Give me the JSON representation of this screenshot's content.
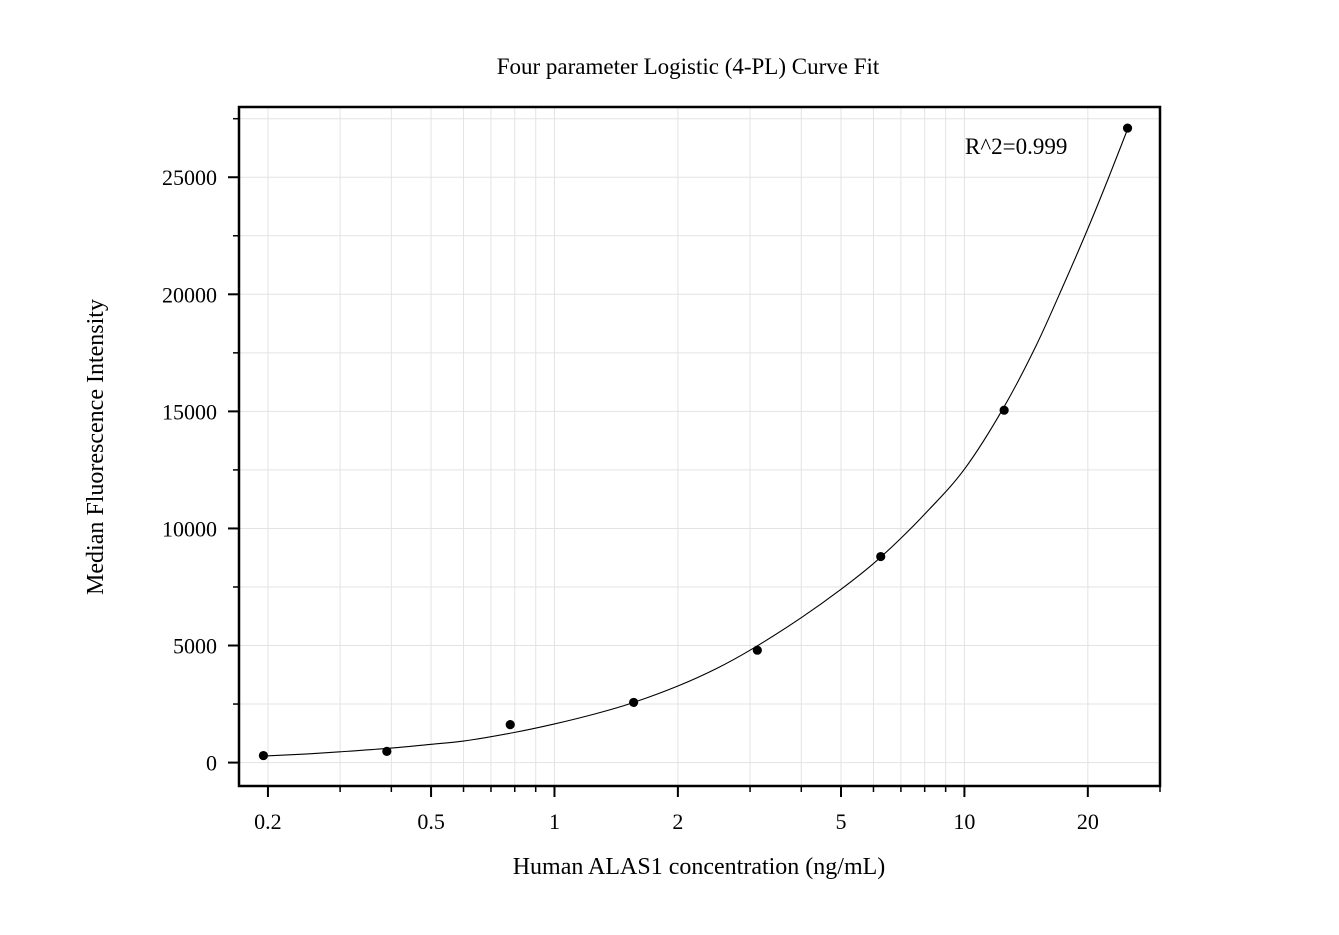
{
  "chart_data": {
    "type": "scatter",
    "title": "Four parameter Logistic (4-PL) Curve Fit",
    "xlabel": "Human ALAS1 concentration (ng/mL)",
    "ylabel": "Median Fluorescence Intensity",
    "x_scale": "log",
    "xlim": [
      0.17,
      30
    ],
    "ylim": [
      -1000,
      28000
    ],
    "x_ticks": [
      {
        "value": 0.2,
        "label": "0.2"
      },
      {
        "value": 0.5,
        "label": "0.5"
      },
      {
        "value": 1,
        "label": "1"
      },
      {
        "value": 2,
        "label": "2"
      },
      {
        "value": 5,
        "label": "5"
      },
      {
        "value": 10,
        "label": "10"
      },
      {
        "value": 20,
        "label": "20"
      }
    ],
    "y_ticks": [
      {
        "value": 0,
        "label": "0"
      },
      {
        "value": 5000,
        "label": "5000"
      },
      {
        "value": 10000,
        "label": "10000"
      },
      {
        "value": 15000,
        "label": "15000"
      },
      {
        "value": 20000,
        "label": "20000"
      },
      {
        "value": 25000,
        "label": "25000"
      }
    ],
    "grid": true,
    "series": [
      {
        "x": [
          0.195,
          0.39,
          0.78,
          1.56,
          3.125,
          6.25,
          12.5,
          25
        ],
        "y": [
          300,
          480,
          1620,
          2570,
          4800,
          8800,
          15050,
          27100
        ],
        "color": "#000000"
      }
    ],
    "fit_curve": {
      "type": "4-PL",
      "x": [
        0.195,
        0.25,
        0.3,
        0.4,
        0.5,
        0.6,
        0.8,
        1.0,
        1.25,
        1.5,
        2.0,
        2.5,
        3.0,
        4.0,
        5.0,
        6.0,
        7.0,
        8.0,
        10.0,
        12.5,
        15.0,
        17.5,
        20.0,
        22.5,
        25.0
      ],
      "y": [
        280,
        370,
        460,
        620,
        780,
        920,
        1290,
        1650,
        2070,
        2470,
        3270,
        4040,
        4800,
        6190,
        7400,
        8500,
        9580,
        10610,
        12530,
        15200,
        17850,
        20450,
        22800,
        25000,
        27050
      ],
      "color": "#000000"
    },
    "annotation": "R^2=0.999"
  }
}
